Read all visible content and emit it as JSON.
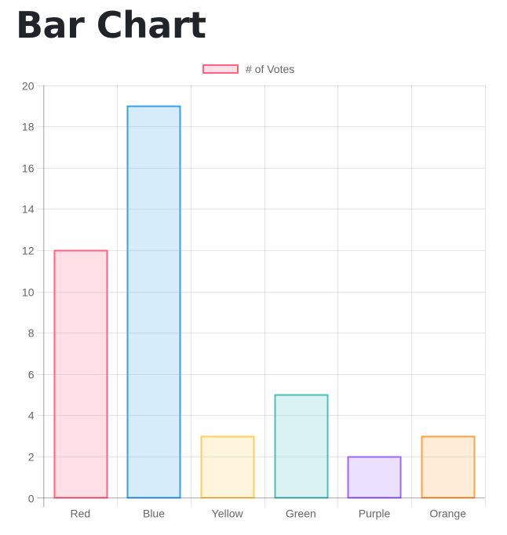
{
  "page": {
    "title": "Bar Chart"
  },
  "chart_data": {
    "type": "bar",
    "title": "",
    "categories": [
      "Red",
      "Blue",
      "Yellow",
      "Green",
      "Purple",
      "Orange"
    ],
    "series": [
      {
        "name": "# of Votes",
        "values": [
          12,
          19,
          3,
          5,
          2,
          3
        ],
        "backgroundColors": [
          "rgba(255,99,132,0.2)",
          "rgba(54,162,235,0.2)",
          "rgba(255,206,86,0.2)",
          "rgba(75,192,192,0.2)",
          "rgba(153,102,255,0.2)",
          "rgba(255,159,64,0.2)"
        ],
        "borderColors": [
          "#ff6384",
          "#36a2eb",
          "#ffce56",
          "#4bc0c0",
          "#9966ff",
          "#ff9f40"
        ]
      }
    ],
    "xlabel": "",
    "ylabel": "",
    "ylim": [
      0,
      20
    ],
    "yticks": [
      0,
      2,
      4,
      6,
      8,
      10,
      12,
      14,
      16,
      18,
      20
    ],
    "grid": true,
    "legend": {
      "position": "top",
      "label": "# of Votes"
    }
  }
}
